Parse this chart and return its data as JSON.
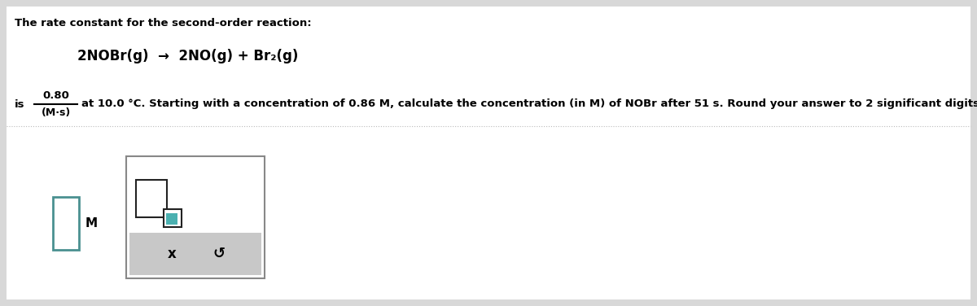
{
  "bg_color": "#d8d8d8",
  "white_bg": "#ffffff",
  "light_gray": "#c8c8c8",
  "panel_border": "#aaaaaa",
  "line1": "The rate constant for the second-order reaction:",
  "reaction": "2NOBr(g)  →  2NO(g) + Br₂(g)",
  "numerator": "0.80",
  "denominator": "(M·s)",
  "is_label": "is",
  "main_text": "at 10.0 °C. Starting with a concentration of 0.86 M, calculate the concentration (in M) of NOBr after 51 s. Round your answer to 2 significant digits.",
  "input_box_label": "M",
  "x_button": "x",
  "undo_button": "↺",
  "input_box_color": "#4a9090",
  "formula_box_color_outer": "#000000",
  "formula_box_color_inner": "#4ab0b0"
}
